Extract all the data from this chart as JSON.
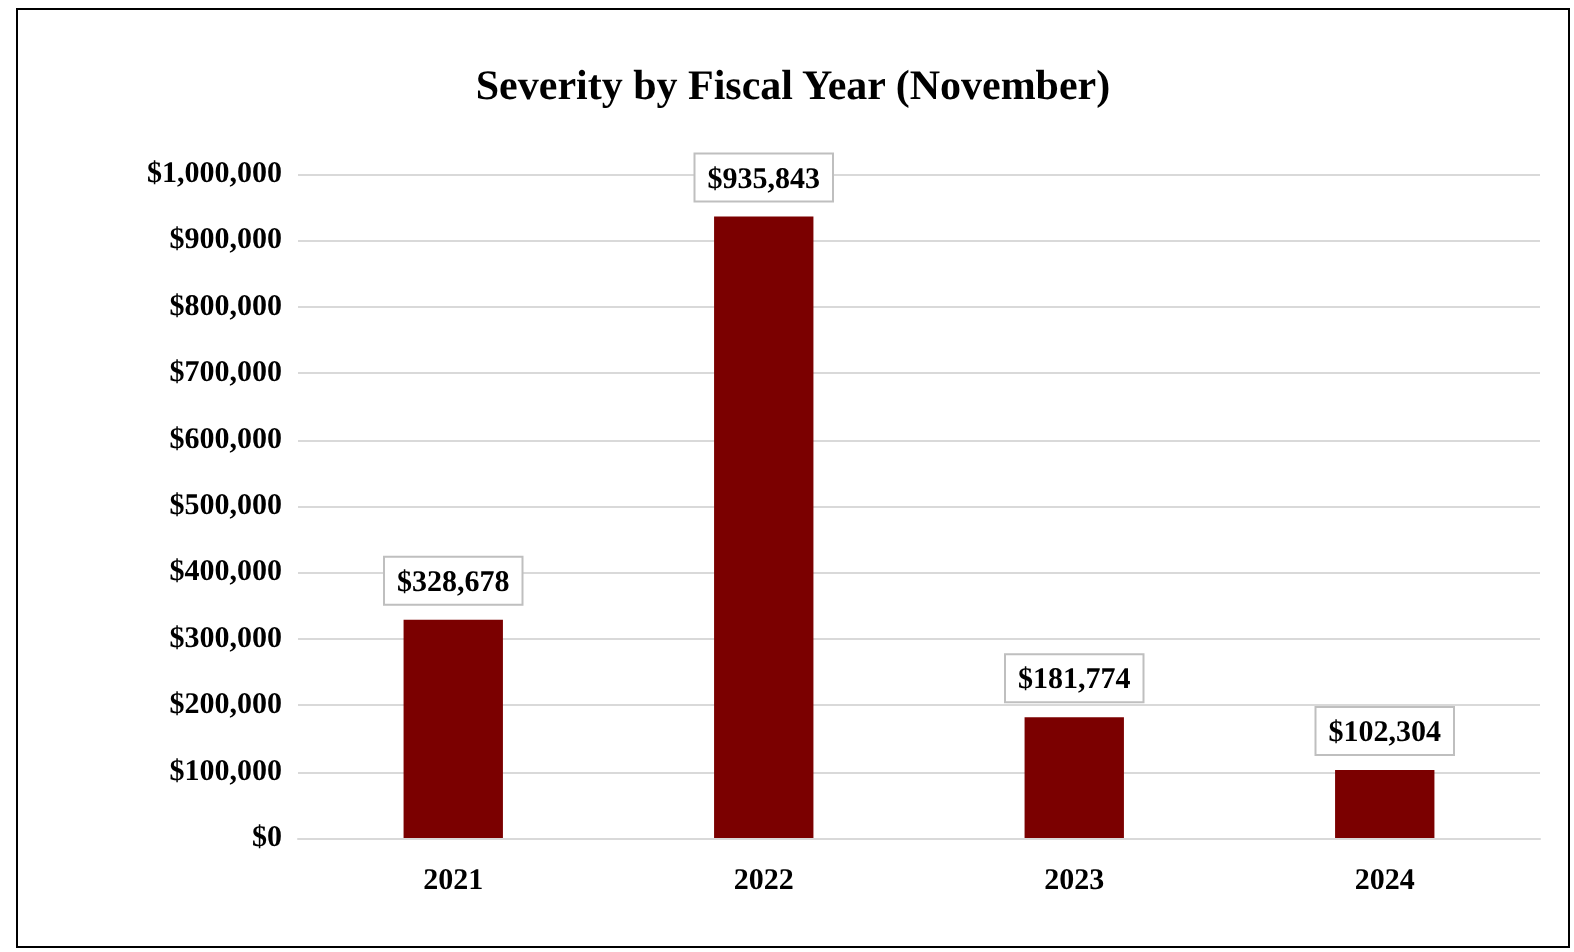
{
  "chart_data": {
    "type": "bar",
    "title": "Severity by Fiscal Year (November)",
    "categories": [
      "2021",
      "2022",
      "2023",
      "2024"
    ],
    "values": [
      328678,
      935843,
      181774,
      102304
    ],
    "value_labels": [
      "$328,678",
      "$935,843",
      "$181,774",
      "$102,304"
    ],
    "color": "#7b0000",
    "ylim": [
      0,
      1000000
    ],
    "yticks": [
      {
        "value": 0,
        "label": "$0"
      },
      {
        "value": 100000,
        "label": "$100,000"
      },
      {
        "value": 200000,
        "label": "$200,000"
      },
      {
        "value": 300000,
        "label": "$300,000"
      },
      {
        "value": 400000,
        "label": "$400,000"
      },
      {
        "value": 500000,
        "label": "$500,000"
      },
      {
        "value": 600000,
        "label": "$600,000"
      },
      {
        "value": 700000,
        "label": "$700,000"
      },
      {
        "value": 800000,
        "label": "$800,000"
      },
      {
        "value": 900000,
        "label": "$900,000"
      },
      {
        "value": 1000000,
        "label": "$1,000,000"
      }
    ],
    "grid": "y"
  }
}
